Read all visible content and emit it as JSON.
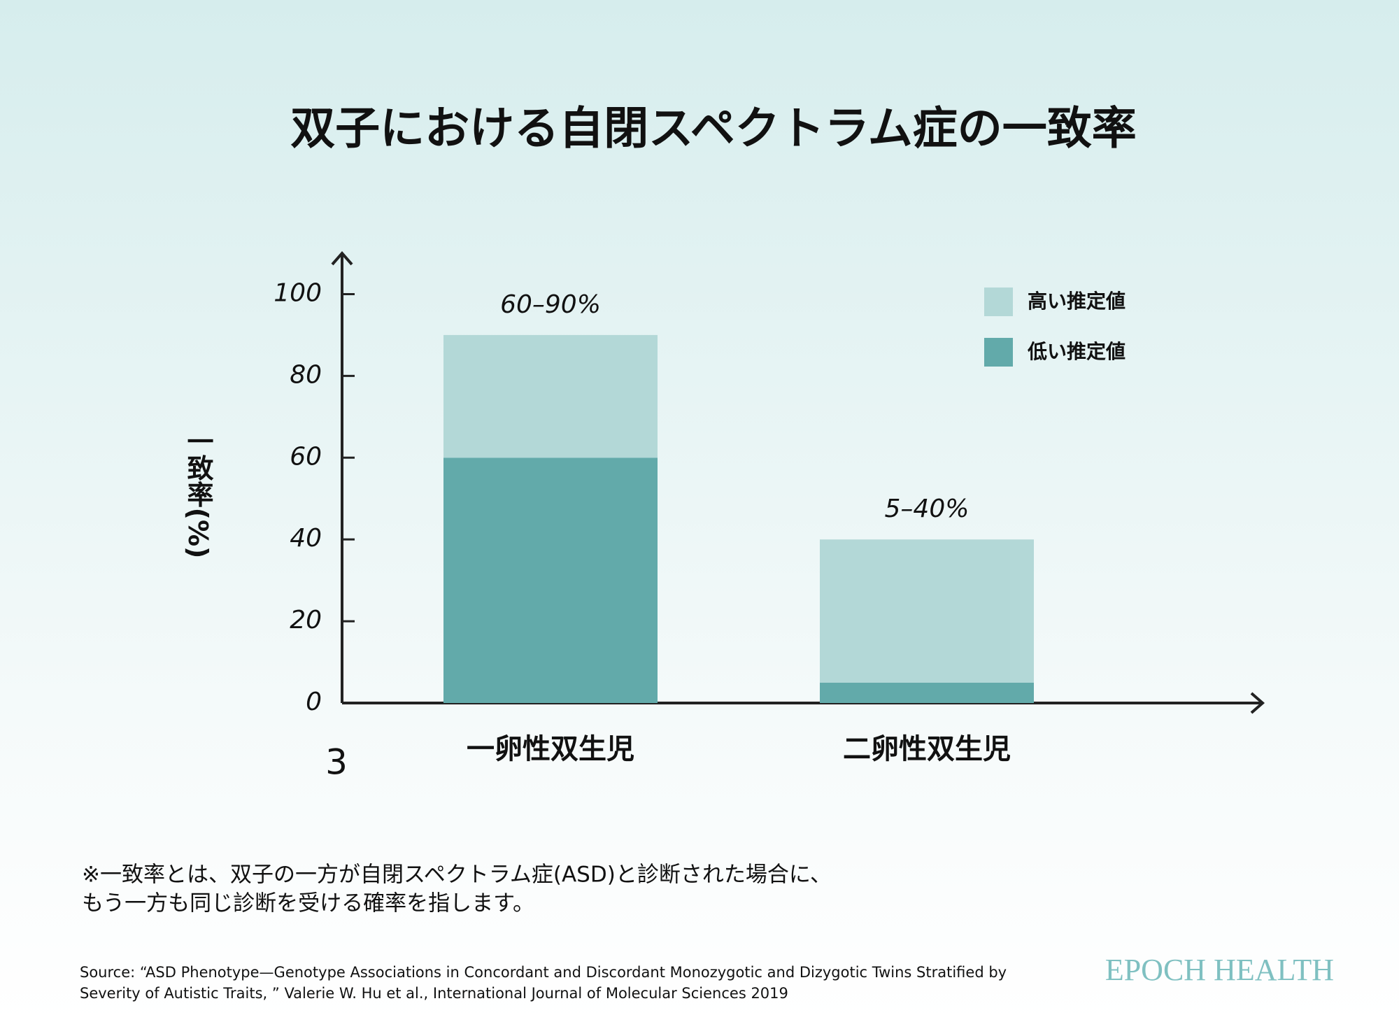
{
  "chart_data": {
    "type": "stacked_bar",
    "title": "双子における自閉スペクトラム症の一致率",
    "ylabel": "一致率(%)",
    "categories": [
      "一卵性双生児",
      "二卵性双生児"
    ],
    "series": [
      {
        "name": "低い推定値",
        "color": "#62aaaa",
        "values": [
          60,
          5
        ]
      },
      {
        "name": "高い推定値",
        "color": "#b3d8d7",
        "values": [
          30,
          35
        ]
      }
    ],
    "range_labels": [
      "60–90%",
      "5–40%"
    ],
    "ylim": [
      0,
      110
    ],
    "yticks": [
      0,
      20,
      40,
      60,
      80,
      100
    ],
    "legend_position": "upper right",
    "stray_text": "3"
  },
  "note": [
    "※一致率とは、双子の一方が自閉スペクトラム症(ASD)と診断された場合に、",
    "もう一方も同じ診断を受ける確率を指します。"
  ],
  "source": [
    "Source: “ASD Phenotype—Genotype Associations in Concordant and Discordant Monozygotic and Dizygotic Twins Stratified by",
    "Severity of Autistic Traits, ” Valerie W. Hu et al., International Journal of Molecular Sciences 2019"
  ],
  "brand": "EPOCH HEALTH"
}
